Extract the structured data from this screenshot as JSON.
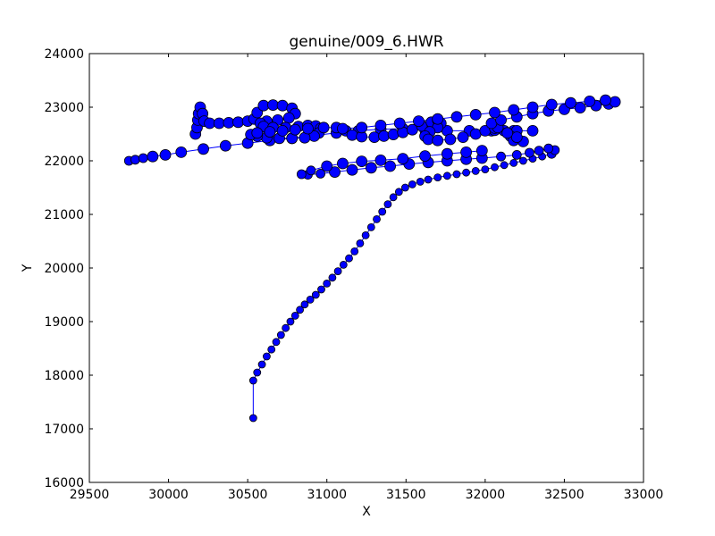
{
  "chart_data": {
    "type": "scatter",
    "title": "genuine/009_6.HWR",
    "xlabel": "X",
    "ylabel": "Y",
    "xlim": [
      29500,
      33000
    ],
    "ylim": [
      16000,
      24000
    ],
    "xticks": [
      29500,
      30000,
      30500,
      31000,
      31500,
      32000,
      32500,
      33000
    ],
    "yticks": [
      16000,
      17000,
      18000,
      19000,
      20000,
      21000,
      22000,
      23000,
      24000
    ],
    "grid": false,
    "colors": {
      "marker_fill": "#0000ff",
      "marker_edge": "#000000",
      "line": "#0000ff"
    },
    "strokes": [
      {
        "name": "",
        "points": [
          [
            30535,
            17200,
            4
          ],
          [
            30535,
            17900,
            4
          ],
          [
            30560,
            18050,
            4
          ],
          [
            30590,
            18200,
            4
          ],
          [
            30620,
            18350,
            4
          ],
          [
            30650,
            18480,
            4
          ],
          [
            30680,
            18620,
            4
          ],
          [
            30710,
            18750,
            4
          ],
          [
            30740,
            18880,
            4
          ],
          [
            30770,
            19000,
            4
          ],
          [
            30800,
            19110,
            4
          ],
          [
            30830,
            19220,
            4
          ],
          [
            30860,
            19320,
            4
          ],
          [
            30895,
            19410,
            4
          ],
          [
            30930,
            19500,
            4
          ],
          [
            30965,
            19600,
            4
          ],
          [
            31000,
            19710,
            4
          ],
          [
            31035,
            19820,
            4
          ],
          [
            31070,
            19940,
            4
          ],
          [
            31105,
            20060,
            4
          ],
          [
            31140,
            20180,
            4
          ],
          [
            31175,
            20310,
            4
          ],
          [
            31210,
            20460,
            4
          ],
          [
            31245,
            20610,
            4
          ],
          [
            31280,
            20760,
            4
          ],
          [
            31315,
            20910,
            4
          ],
          [
            31350,
            21050,
            4
          ],
          [
            31385,
            21190,
            4
          ],
          [
            31420,
            21320,
            4
          ],
          [
            31455,
            21420,
            4
          ],
          [
            31495,
            21500,
            4
          ],
          [
            31540,
            21560,
            4
          ],
          [
            31590,
            21610,
            4
          ],
          [
            31640,
            21650,
            4
          ],
          [
            31700,
            21690,
            4
          ],
          [
            31760,
            21720,
            4
          ],
          [
            31820,
            21750,
            4
          ],
          [
            31880,
            21780,
            4
          ],
          [
            31940,
            21810,
            4
          ],
          [
            32000,
            21840,
            4
          ],
          [
            32060,
            21880,
            4
          ],
          [
            32120,
            21920,
            4
          ],
          [
            32180,
            21960,
            4
          ],
          [
            32240,
            22000,
            4
          ],
          [
            32300,
            22040,
            4
          ],
          [
            32360,
            22080,
            4
          ],
          [
            32420,
            22130,
            5
          ],
          [
            32440,
            22200,
            5
          ],
          [
            32400,
            22230,
            5
          ],
          [
            32340,
            22190,
            5
          ],
          [
            32280,
            22150,
            5
          ],
          [
            32200,
            22110,
            5
          ],
          [
            32100,
            22080,
            5
          ],
          [
            31980,
            22050,
            6
          ],
          [
            31880,
            22030,
            6
          ],
          [
            31760,
            22000,
            6
          ],
          [
            31640,
            21970,
            6
          ],
          [
            31520,
            21940,
            6
          ],
          [
            31400,
            21900,
            6
          ],
          [
            31280,
            21870,
            6
          ],
          [
            31160,
            21830,
            6
          ],
          [
            31050,
            21790,
            6
          ],
          [
            30960,
            21760,
            5
          ],
          [
            30880,
            21740,
            5
          ],
          [
            30840,
            21750,
            5
          ],
          [
            30900,
            21820,
            5
          ],
          [
            31000,
            21900,
            6
          ],
          [
            31100,
            21950,
            6
          ],
          [
            31220,
            21990,
            6
          ],
          [
            31340,
            22010,
            6
          ],
          [
            31480,
            22040,
            6
          ],
          [
            31620,
            22090,
            6
          ],
          [
            31760,
            22130,
            6
          ],
          [
            31880,
            22160,
            6
          ],
          [
            31980,
            22190,
            6
          ]
        ]
      },
      {
        "name": "",
        "points": [
          [
            29750,
            22000,
            5
          ],
          [
            29790,
            22020,
            5
          ],
          [
            29840,
            22050,
            5
          ],
          [
            29900,
            22080,
            6
          ],
          [
            29980,
            22110,
            6
          ],
          [
            30080,
            22160,
            6
          ],
          [
            30220,
            22220,
            6
          ],
          [
            30360,
            22280,
            6
          ],
          [
            30500,
            22330,
            6
          ],
          [
            30640,
            22380,
            6
          ],
          [
            30780,
            22420,
            6
          ],
          [
            30920,
            22470,
            6
          ],
          [
            31060,
            22520,
            6
          ],
          [
            31200,
            22560,
            6
          ],
          [
            31340,
            22590,
            6
          ],
          [
            31480,
            22600,
            6
          ],
          [
            31620,
            22580,
            6
          ],
          [
            31760,
            22560,
            6
          ],
          [
            31900,
            22560,
            6
          ],
          [
            32040,
            22560,
            6
          ],
          [
            32180,
            22560,
            6
          ],
          [
            32300,
            22560,
            6
          ],
          [
            32200,
            22560,
            6
          ],
          [
            32060,
            22570,
            6
          ]
        ]
      },
      {
        "name": "",
        "points": [
          [
            30170,
            22500,
            6
          ],
          [
            30180,
            22620,
            6
          ],
          [
            30185,
            22760,
            6
          ],
          [
            30190,
            22880,
            6
          ],
          [
            30200,
            23000,
            6
          ],
          [
            30215,
            22880,
            6
          ],
          [
            30225,
            22740,
            6
          ],
          [
            30260,
            22700,
            6
          ],
          [
            30320,
            22700,
            6
          ],
          [
            30380,
            22710,
            6
          ],
          [
            30440,
            22720,
            6
          ],
          [
            30500,
            22740,
            6
          ],
          [
            30540,
            22780,
            6
          ],
          [
            30560,
            22900,
            6
          ],
          [
            30600,
            23030,
            6
          ],
          [
            30660,
            23040,
            6
          ],
          [
            30720,
            23030,
            6
          ],
          [
            30780,
            22980,
            6
          ],
          [
            30800,
            22880,
            6
          ],
          [
            30760,
            22800,
            6
          ],
          [
            30690,
            22760,
            6
          ],
          [
            30620,
            22740,
            6
          ],
          [
            30580,
            22700,
            6
          ],
          [
            30600,
            22640,
            6
          ],
          [
            30660,
            22620,
            6
          ],
          [
            30740,
            22620,
            6
          ],
          [
            30820,
            22640,
            6
          ],
          [
            30880,
            22660,
            6
          ],
          [
            30930,
            22650,
            6
          ],
          [
            30960,
            22600,
            6
          ],
          [
            30950,
            22520,
            6
          ],
          [
            30920,
            22460,
            6
          ],
          [
            30860,
            22430,
            6
          ],
          [
            30780,
            22420,
            6
          ],
          [
            30700,
            22420,
            6
          ],
          [
            30620,
            22430,
            6
          ],
          [
            30560,
            22460,
            6
          ],
          [
            30520,
            22490,
            6
          ],
          [
            30560,
            22520,
            6
          ],
          [
            30640,
            22540,
            6
          ],
          [
            30720,
            22560,
            6
          ],
          [
            30800,
            22580,
            6
          ],
          [
            30880,
            22600,
            6
          ],
          [
            30980,
            22620,
            6
          ],
          [
            31060,
            22620,
            6
          ],
          [
            31120,
            22560,
            6
          ],
          [
            31160,
            22480,
            6
          ],
          [
            31220,
            22450,
            6
          ],
          [
            31300,
            22440,
            6
          ],
          [
            31360,
            22460,
            6
          ],
          [
            31420,
            22490,
            6
          ],
          [
            31480,
            22530,
            6
          ],
          [
            31540,
            22580,
            6
          ],
          [
            31600,
            22650,
            6
          ],
          [
            31660,
            22720,
            6
          ],
          [
            31700,
            22760,
            6
          ],
          [
            31720,
            22700,
            6
          ],
          [
            31700,
            22620,
            6
          ],
          [
            31650,
            22540,
            6
          ],
          [
            31620,
            22460,
            6
          ],
          [
            31640,
            22400,
            6
          ],
          [
            31700,
            22380,
            6
          ],
          [
            31780,
            22400,
            6
          ],
          [
            31860,
            22440,
            6
          ],
          [
            31940,
            22500,
            6
          ],
          [
            32000,
            22560,
            6
          ],
          [
            32060,
            22610,
            6
          ],
          [
            32120,
            22560,
            6
          ],
          [
            32160,
            22460,
            6
          ],
          [
            32180,
            22380,
            6
          ],
          [
            32240,
            22360,
            6
          ],
          [
            32200,
            22440,
            6
          ],
          [
            32140,
            22520,
            6
          ],
          [
            32080,
            22620,
            6
          ],
          [
            32040,
            22700,
            6
          ],
          [
            32100,
            22760,
            6
          ],
          [
            32200,
            22820,
            6
          ],
          [
            32300,
            22880,
            6
          ],
          [
            32400,
            22930,
            6
          ],
          [
            32500,
            22960,
            6
          ],
          [
            32600,
            22990,
            6
          ],
          [
            32700,
            23030,
            6
          ],
          [
            32780,
            23060,
            6
          ],
          [
            32820,
            23100,
            6
          ],
          [
            32760,
            23130,
            6
          ],
          [
            32660,
            23110,
            6
          ],
          [
            32540,
            23080,
            6
          ],
          [
            32420,
            23050,
            6
          ],
          [
            32300,
            23000,
            6
          ],
          [
            32180,
            22950,
            6
          ],
          [
            32060,
            22900,
            6
          ],
          [
            31940,
            22860,
            6
          ],
          [
            31820,
            22820,
            6
          ],
          [
            31700,
            22780,
            6
          ],
          [
            31580,
            22740,
            6
          ],
          [
            31460,
            22700,
            6
          ],
          [
            31340,
            22660,
            6
          ],
          [
            31220,
            22620,
            6
          ],
          [
            31100,
            22600,
            6
          ]
        ]
      }
    ]
  }
}
